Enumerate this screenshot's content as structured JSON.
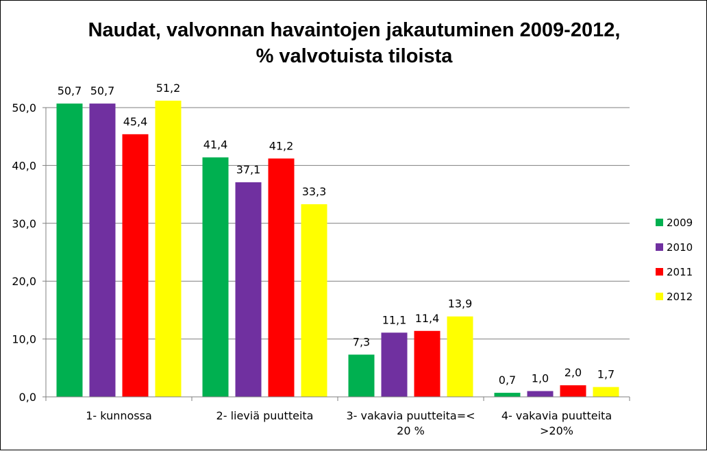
{
  "chart_data": {
    "type": "bar",
    "title": [
      "Naudat, valvonnan havaintojen jakautuminen 2009-2012,",
      "% valvotuista tiloista"
    ],
    "categories": [
      [
        "1- kunnossa"
      ],
      [
        "2- lieviä puutteita"
      ],
      [
        "3- vakavia puutteita=<",
        "20 %"
      ],
      [
        "4- vakavia puutteita",
        ">20%"
      ]
    ],
    "series": [
      {
        "name": "2009",
        "color": "#00B050",
        "values": [
          50.7,
          41.4,
          7.3,
          0.7
        ],
        "labels": [
          "50,7",
          "41,4",
          "7,3",
          "0,7"
        ]
      },
      {
        "name": "2010",
        "color": "#7030A0",
        "values": [
          50.7,
          37.1,
          11.1,
          1.0
        ],
        "labels": [
          "50,7",
          "37,1",
          "11,1",
          "1,0"
        ]
      },
      {
        "name": "2011",
        "color": "#FF0000",
        "values": [
          45.4,
          41.2,
          11.4,
          2.0
        ],
        "labels": [
          "45,4",
          "41,2",
          "11,4",
          "2,0"
        ]
      },
      {
        "name": "2012",
        "color": "#FFFF00",
        "values": [
          51.2,
          33.3,
          13.9,
          1.7
        ],
        "labels": [
          "51,2",
          "33,3",
          "13,9",
          "1,7"
        ]
      }
    ],
    "ylim": [
      0,
      50
    ],
    "yticks": [
      0,
      10,
      20,
      30,
      40,
      50
    ],
    "ytick_labels": [
      "0,0",
      "10,0",
      "20,0",
      "30,0",
      "40,0",
      "50,0"
    ],
    "xlabel": "",
    "ylabel": "",
    "grid": true,
    "legend_position": "right"
  }
}
